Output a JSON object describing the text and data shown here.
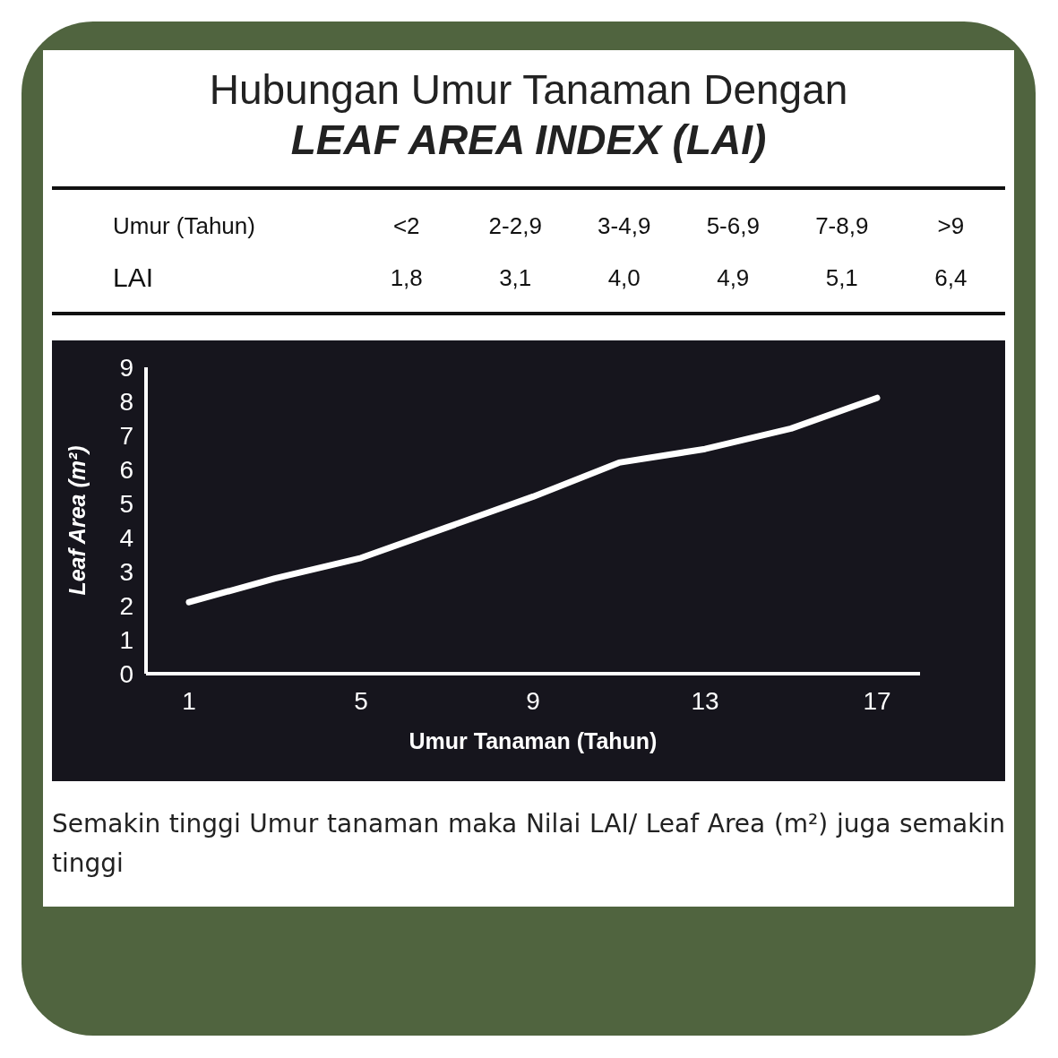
{
  "chart_data": [
    {
      "type": "other",
      "title": "Hubungan Umur Tanaman Dengan\nLEAF AREA INDEX (LAI)",
      "xlabel": "Umur (Tahun)",
      "ylabel": "LAI",
      "categories": [
        "<2",
        "2-2,9",
        "3-4,9",
        "5-6,9",
        "7-8,9",
        ">9"
      ],
      "value_labels": [
        "1,8",
        "3,1",
        "4,0",
        "4,9",
        "5,1",
        "6,4"
      ]
    },
    {
      "type": "line",
      "xlabel": "Umur Tanaman (Tahun)",
      "ylabel": "Leaf Area (m²)",
      "x": [
        1,
        3,
        5,
        7,
        9,
        11,
        13,
        15,
        17
      ],
      "series": [
        {
          "color": "#ffffff",
          "values": [
            2.1,
            2.8,
            3.4,
            4.3,
            5.2,
            6.2,
            6.6,
            7.2,
            8.1
          ]
        }
      ],
      "xlim": [
        0,
        18
      ],
      "xticks": [
        1,
        5,
        9,
        13,
        17
      ],
      "ylim": [
        0,
        9
      ],
      "yticks": [
        0,
        1,
        2,
        3,
        4,
        5,
        6,
        7,
        8,
        9
      ],
      "grid": false,
      "marker": "none",
      "line_style": "solid",
      "annotations": [
        "Semakin tinggi Umur tanaman maka Nilai LAI/ Leaf Area (m²) juga semakin tinggi"
      ]
    }
  ]
}
